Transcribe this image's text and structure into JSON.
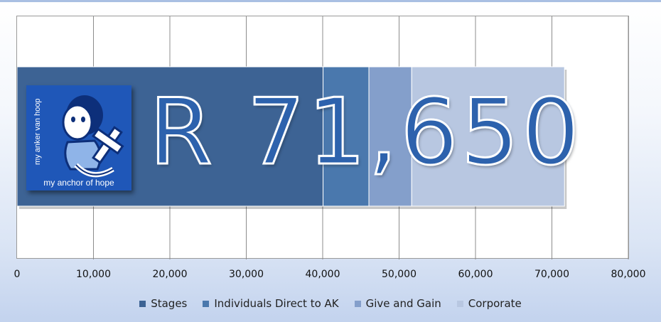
{
  "chart_data": {
    "type": "bar",
    "orientation": "horizontal",
    "stacked": true,
    "categories": [
      ""
    ],
    "series": [
      {
        "name": "Stages",
        "values": [
          40050
        ],
        "color": "#3d6394"
      },
      {
        "name": "Individuals Direct to AK",
        "values": [
          6000
        ],
        "color": "#4a78ad"
      },
      {
        "name": "Give and Gain",
        "values": [
          5600
        ],
        "color": "#849fcb"
      },
      {
        "name": "Corporate",
        "values": [
          20000
        ],
        "color": "#b8c7e1"
      }
    ],
    "xlim": [
      0,
      80000
    ],
    "x_ticks": [
      "0",
      "10,000",
      "20,000",
      "30,000",
      "40,000",
      "50,000",
      "60,000",
      "70,000",
      "80,000"
    ],
    "x_tick_values": [
      0,
      10000,
      20000,
      30000,
      40000,
      50000,
      60000,
      70000,
      80000
    ],
    "grid": "vertical",
    "legend_position": "bottom",
    "annotation": "R 71,650"
  },
  "logo": {
    "top_text": "my anker van hoop",
    "bottom_text": "my anchor of hope"
  }
}
